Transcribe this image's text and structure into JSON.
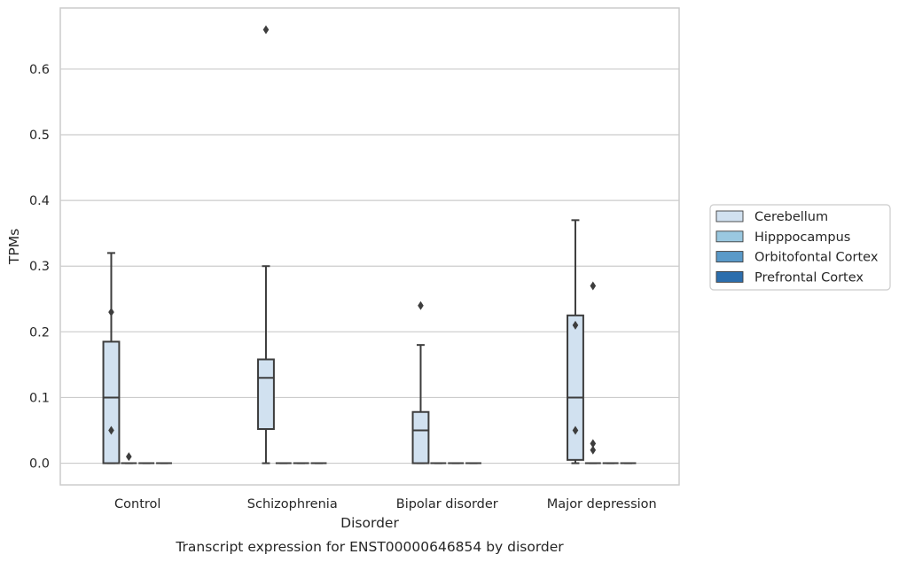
{
  "chart_data": {
    "type": "box",
    "xlabel": "Disorder",
    "ylabel": "TPMs",
    "caption": "Transcript expression for ENST00000646854 by disorder",
    "ylim": [
      -0.033,
      0.693
    ],
    "yticks": [
      0.0,
      0.1,
      0.2,
      0.3,
      0.4,
      0.5,
      0.6
    ],
    "ytick_labels": [
      "0.0",
      "0.1",
      "0.2",
      "0.3",
      "0.4",
      "0.5",
      "0.6"
    ],
    "grid": "horizontal",
    "legend_position": "right",
    "categories": [
      "Control",
      "Schizophrenia",
      "Bipolar disorder",
      "Major depression"
    ],
    "series": [
      {
        "name": "Cerebellum",
        "color": "#d1e1f0",
        "boxes": [
          {
            "category": "Control",
            "whislo": 0.0,
            "q1": 0.0,
            "med": 0.1,
            "q3": 0.185,
            "whishi": 0.32,
            "fliers": [
              0.23,
              0.05
            ]
          },
          {
            "category": "Schizophrenia",
            "whislo": 0.0,
            "q1": 0.052,
            "med": 0.13,
            "q3": 0.158,
            "whishi": 0.3,
            "fliers": [
              0.66
            ]
          },
          {
            "category": "Bipolar disorder",
            "whislo": 0.0,
            "q1": 0.0,
            "med": 0.05,
            "q3": 0.078,
            "whishi": 0.18,
            "fliers": [
              0.24
            ]
          },
          {
            "category": "Major depression",
            "whislo": 0.0,
            "q1": 0.005,
            "med": 0.1,
            "q3": 0.225,
            "whishi": 0.37,
            "fliers": [
              0.21,
              0.05
            ]
          }
        ]
      },
      {
        "name": "Hipppocampus",
        "color": "#9ac8e0",
        "boxes": [
          {
            "category": "Control",
            "whislo": 0.0,
            "q1": 0.0,
            "med": 0.0,
            "q3": 0.0,
            "whishi": 0.0,
            "fliers": [
              0.01
            ]
          },
          {
            "category": "Schizophrenia",
            "whislo": 0.0,
            "q1": 0.0,
            "med": 0.0,
            "q3": 0.0,
            "whishi": 0.0,
            "fliers": []
          },
          {
            "category": "Bipolar disorder",
            "whislo": 0.0,
            "q1": 0.0,
            "med": 0.0,
            "q3": 0.0,
            "whishi": 0.0,
            "fliers": []
          },
          {
            "category": "Major depression",
            "whislo": 0.0,
            "q1": 0.0,
            "med": 0.0,
            "q3": 0.0,
            "whishi": 0.0,
            "fliers": [
              0.27,
              0.03,
              0.02
            ]
          }
        ]
      },
      {
        "name": "Orbitofontal Cortex",
        "color": "#5a9ac9",
        "boxes": [
          {
            "category": "Control",
            "whislo": 0.0,
            "q1": 0.0,
            "med": 0.0,
            "q3": 0.0,
            "whishi": 0.0,
            "fliers": []
          },
          {
            "category": "Schizophrenia",
            "whislo": 0.0,
            "q1": 0.0,
            "med": 0.0,
            "q3": 0.0,
            "whishi": 0.0,
            "fliers": []
          },
          {
            "category": "Bipolar disorder",
            "whislo": 0.0,
            "q1": 0.0,
            "med": 0.0,
            "q3": 0.0,
            "whishi": 0.0,
            "fliers": []
          },
          {
            "category": "Major depression",
            "whislo": 0.0,
            "q1": 0.0,
            "med": 0.0,
            "q3": 0.0,
            "whishi": 0.0,
            "fliers": []
          }
        ]
      },
      {
        "name": "Prefrontal Cortex",
        "color": "#2c6ead",
        "boxes": [
          {
            "category": "Control",
            "whislo": 0.0,
            "q1": 0.0,
            "med": 0.0,
            "q3": 0.0,
            "whishi": 0.0,
            "fliers": []
          },
          {
            "category": "Schizophrenia",
            "whislo": 0.0,
            "q1": 0.0,
            "med": 0.0,
            "q3": 0.0,
            "whishi": 0.0,
            "fliers": []
          },
          {
            "category": "Bipolar disorder",
            "whislo": 0.0,
            "q1": 0.0,
            "med": 0.0,
            "q3": 0.0,
            "whishi": 0.0,
            "fliers": []
          },
          {
            "category": "Major depression",
            "whislo": 0.0,
            "q1": 0.0,
            "med": 0.0,
            "q3": 0.0,
            "whishi": 0.0,
            "fliers": []
          }
        ]
      }
    ],
    "colors": {
      "line": "#3d3d3d",
      "grid": "#cccccc",
      "frame": "#cccccc",
      "text": "#262626"
    }
  }
}
